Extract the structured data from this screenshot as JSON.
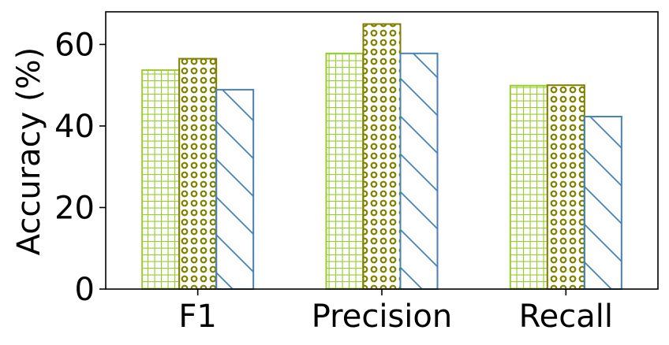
{
  "chart_data": {
    "type": "bar",
    "categories": [
      "F1",
      "Precision",
      "Recall"
    ],
    "series": [
      {
        "values": [
          53.7,
          57.8,
          49.9
        ],
        "color": "#9acd32",
        "pattern": "grid"
      },
      {
        "values": [
          56.5,
          65.0,
          50.0
        ],
        "color": "#808000",
        "pattern": "rings"
      },
      {
        "values": [
          48.9,
          57.8,
          42.3
        ],
        "color": "#4682b4",
        "pattern": "diagonal"
      }
    ],
    "xlabel": "",
    "ylabel": "Accuracy (%)",
    "ylim": [
      0,
      68
    ],
    "yticks": [
      0,
      20,
      40,
      60
    ],
    "grid": false,
    "legend": false
  }
}
